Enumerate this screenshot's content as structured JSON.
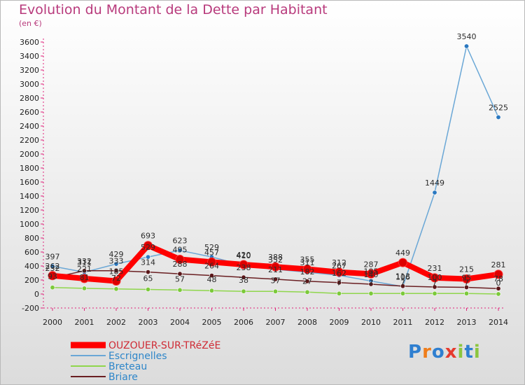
{
  "chart_data": {
    "type": "line",
    "title": "Evolution du Montant de la Dette par Habitant",
    "ylabel": "(en €)",
    "xlabel": "",
    "categories": [
      "2000",
      "2001",
      "2002",
      "2003",
      "2004",
      "2005",
      "2006",
      "2007",
      "2008",
      "2009",
      "2010",
      "2011",
      "2012",
      "2013",
      "2014"
    ],
    "ylim": [
      -200,
      3600
    ],
    "yticks": [
      -200,
      0,
      200,
      400,
      600,
      800,
      1000,
      1200,
      1400,
      1600,
      1800,
      2000,
      2200,
      2400,
      2600,
      2800,
      3000,
      3200,
      3400,
      3600
    ],
    "series": [
      {
        "name": "OUZOUER-SUR-TRéZéE",
        "color": "#ff0000",
        "marker": "#dd0000",
        "width": 8,
        "values": [
          262,
          221,
          185,
          693,
          495,
          457,
          420,
          388,
          355,
          312,
          287,
          449,
          231,
          215,
          281
        ]
      },
      {
        "name": "Escrignelles",
        "color": "#6aa7d6",
        "marker": "#2a78c0",
        "width": 1.5,
        "values": [
          397,
          311,
          429,
          529,
          623,
          529,
          410,
          352,
          311,
          267,
          185,
          106,
          1449,
          3540,
          2525
        ]
      },
      {
        "name": "Breteau",
        "color": "#8fd64c",
        "marker": "#7bc93a",
        "width": 1.5,
        "values": [
          93,
          81,
          72,
          65,
          57,
          48,
          38,
          37,
          27,
          7,
          7,
          7,
          7,
          7,
          0
        ]
      },
      {
        "name": "Briare",
        "color": "#6a1f22",
        "marker": "#5a1719",
        "width": 1.5,
        "values": [
          232,
          332,
          333,
          314,
          288,
          264,
          238,
          211,
          182,
          162,
          140,
          113,
          100,
          95,
          78
        ]
      }
    ],
    "data_labels": {
      "OUZOUER-SUR-TRéZéE": [
        "262",
        "221",
        "185",
        "693",
        "495",
        "457",
        "420",
        "388",
        "355",
        "312",
        "287",
        "449",
        "231",
        "215",
        "281"
      ],
      "Escrignelles": [
        "397",
        "311",
        "429",
        "529",
        "623",
        "529",
        "410",
        "352",
        "311",
        "267",
        "185",
        "106",
        "1449",
        "3540",
        "2525"
      ],
      "Breteau": [
        "93",
        "81",
        "72",
        "65",
        "57",
        "48",
        "38",
        "37",
        "27",
        "7",
        "7",
        "7",
        "7",
        "7",
        "0"
      ],
      "Briare": [
        "232",
        "332",
        "333",
        "314",
        "288",
        "264",
        "238",
        "211",
        "182",
        "162",
        "140",
        "113",
        "100",
        "95",
        "78"
      ]
    },
    "grid": false,
    "legend": "bottom-left"
  },
  "branding": {
    "logo_letters": [
      "P",
      "r",
      "o",
      "x",
      "i",
      "t",
      "i"
    ],
    "logo_colors": [
      "#2f7fd0",
      "#ef7d1a",
      "#2f7fd0",
      "#e63a2e",
      "#8cc63f",
      "#2f7fd0",
      "#8cc63f"
    ]
  }
}
